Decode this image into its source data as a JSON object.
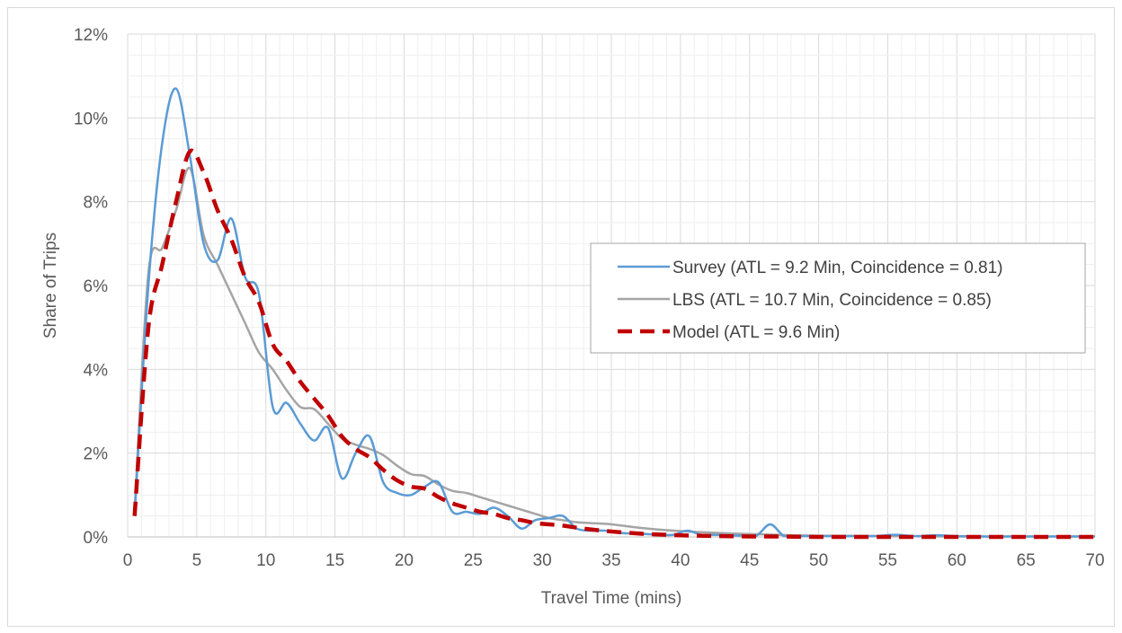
{
  "chart_data": {
    "type": "line",
    "xlabel": "Travel Time (mins)",
    "ylabel": "Share of Trips",
    "xlim": [
      0,
      70
    ],
    "ylim": [
      0,
      12
    ],
    "x_ticks": [
      0,
      5,
      10,
      15,
      20,
      25,
      30,
      35,
      40,
      45,
      50,
      55,
      60,
      65,
      70
    ],
    "x_tick_labels": [
      "0",
      "5",
      "10",
      "15",
      "20",
      "25",
      "30",
      "35",
      "40",
      "45",
      "50",
      "55",
      "60",
      "65",
      "70"
    ],
    "y_ticks": [
      0,
      2,
      4,
      6,
      8,
      10,
      12
    ],
    "y_tick_labels": [
      "0%",
      "2%",
      "4%",
      "6%",
      "8%",
      "10%",
      "12%"
    ],
    "grid": "major and minor",
    "legend_position": "right",
    "series": [
      {
        "name": "Survey (ATL = 9.2 Min, Coincidence = 0.81)",
        "color": "#5b9bd5",
        "style": "solid",
        "x": [
          0.5,
          1.5,
          2.5,
          3.5,
          4.5,
          5.5,
          6.5,
          7.5,
          8.5,
          9.5,
          10.5,
          11.5,
          12.5,
          13.5,
          14.5,
          15.5,
          16.5,
          17.5,
          18.5,
          19.5,
          20.5,
          21.5,
          22.5,
          23.5,
          24.5,
          25.5,
          26.5,
          27.5,
          28.5,
          29.5,
          30.5,
          31.5,
          32.5,
          33.5,
          34.5,
          35.5,
          36.5,
          37.5,
          38.5,
          39.5,
          40.5,
          41.5,
          42.5,
          43.5,
          44.5,
          45.5,
          46.5,
          47.5,
          48.5,
          50,
          52,
          54,
          55.5,
          57,
          58.5,
          60,
          62,
          64,
          66,
          68,
          70
        ],
        "y": [
          0.5,
          6.0,
          9.4,
          10.7,
          9.1,
          7.0,
          6.6,
          7.6,
          6.2,
          5.8,
          3.1,
          3.2,
          2.7,
          2.3,
          2.6,
          1.4,
          2.0,
          2.4,
          1.3,
          1.05,
          1.0,
          1.2,
          1.3,
          0.6,
          0.6,
          0.55,
          0.7,
          0.5,
          0.2,
          0.4,
          0.45,
          0.5,
          0.2,
          0.15,
          0.15,
          0.1,
          0.08,
          0.07,
          0.05,
          0.05,
          0.15,
          0.05,
          0.05,
          0.04,
          0.03,
          0.03,
          0.3,
          0.02,
          0.02,
          0.02,
          0.02,
          0.02,
          0.05,
          0.02,
          0.04,
          0.02,
          0.01,
          0.01,
          0.01,
          0.01,
          0.01
        ]
      },
      {
        "name": "LBS (ATL = 10.7 Min, Coincidence = 0.85)",
        "color": "#a5a5a5",
        "style": "solid",
        "x": [
          0.5,
          1.5,
          2.5,
          3.5,
          4.5,
          5.5,
          6.5,
          7.5,
          8.5,
          9.5,
          10.5,
          11.5,
          12.5,
          13.5,
          14.5,
          15.5,
          16.5,
          17.5,
          18.5,
          19.5,
          20.5,
          21.5,
          22.5,
          23.5,
          24.5,
          25.5,
          26.5,
          27.5,
          28.5,
          29.5,
          30.5,
          31.5,
          32.5,
          33.5,
          35,
          37,
          39,
          41,
          43,
          45,
          47,
          50,
          55,
          60,
          65,
          70
        ],
        "y": [
          0.6,
          6.3,
          6.9,
          7.8,
          8.8,
          7.2,
          6.5,
          5.8,
          5.1,
          4.4,
          4.0,
          3.5,
          3.1,
          3.05,
          2.7,
          2.35,
          2.2,
          2.1,
          1.95,
          1.7,
          1.5,
          1.45,
          1.25,
          1.1,
          1.05,
          0.95,
          0.85,
          0.75,
          0.65,
          0.55,
          0.45,
          0.4,
          0.35,
          0.33,
          0.3,
          0.22,
          0.16,
          0.12,
          0.09,
          0.07,
          0.05,
          0.03,
          0.02,
          0.01,
          0.01,
          0.01
        ]
      },
      {
        "name": "Model (ATL = 9.6 Min)",
        "color": "#c00000",
        "style": "dashed",
        "x": [
          0.5,
          1.5,
          2.5,
          3.5,
          4.5,
          5.5,
          6.5,
          7.5,
          8.5,
          9.5,
          10.5,
          11.5,
          12.5,
          13.5,
          14.5,
          15.5,
          16.5,
          17.5,
          18.5,
          19.5,
          20.5,
          21.5,
          22.5,
          23.5,
          24.5,
          25.5,
          26.5,
          27.5,
          28.5,
          29.5,
          30.5,
          31.5,
          32.5,
          33.5,
          35,
          37,
          39,
          41,
          43,
          45,
          47,
          50,
          55,
          60,
          65,
          70
        ],
        "y": [
          0.5,
          5.0,
          6.5,
          8.0,
          9.2,
          8.7,
          7.8,
          7.1,
          6.2,
          5.6,
          4.6,
          4.2,
          3.7,
          3.3,
          2.9,
          2.4,
          2.1,
          1.9,
          1.6,
          1.35,
          1.2,
          1.15,
          0.95,
          0.8,
          0.7,
          0.6,
          0.55,
          0.45,
          0.4,
          0.33,
          0.3,
          0.27,
          0.22,
          0.18,
          0.13,
          0.08,
          0.05,
          0.03,
          0.02,
          0.01,
          0.01,
          0.0,
          0.0,
          0.0,
          0.0,
          0.0
        ]
      }
    ]
  }
}
